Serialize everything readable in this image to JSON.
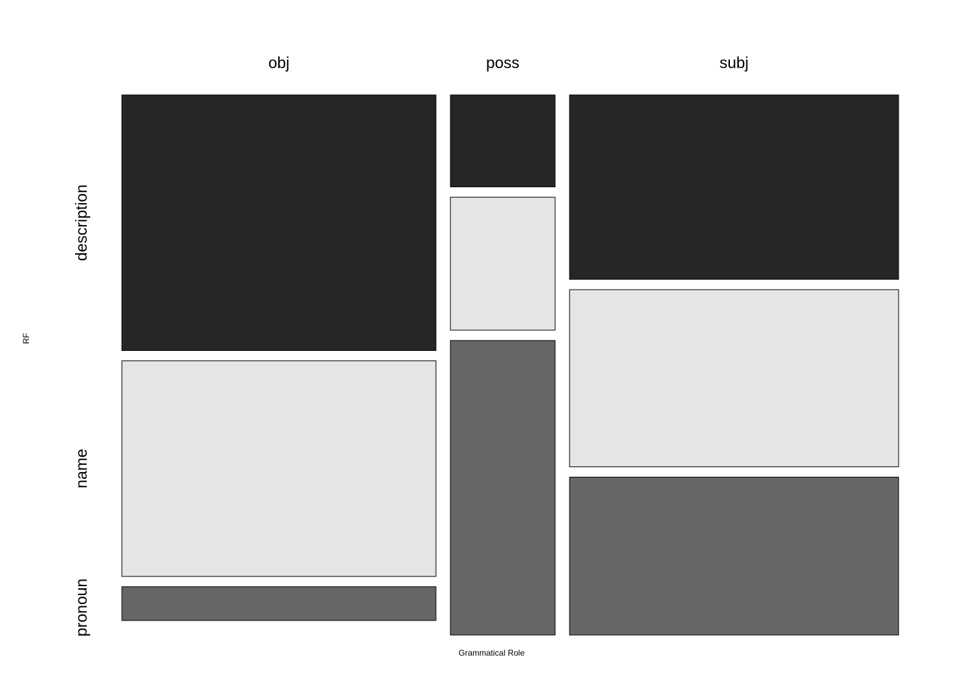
{
  "chart_data": {
    "type": "mosaic",
    "xlabel": "Grammatical Role",
    "ylabel": "RF",
    "columns": [
      "obj",
      "poss",
      "subj"
    ],
    "rows": [
      "description",
      "name",
      "pronoun"
    ],
    "column_proportions": [
      0.42,
      0.14,
      0.44
    ],
    "row_proportions": {
      "obj": [
        0.492,
        0.415,
        0.065
      ],
      "poss": [
        0.177,
        0.256,
        0.567
      ],
      "subj": [
        0.355,
        0.341,
        0.304
      ]
    },
    "colors": {
      "description": "#262626",
      "name": "#e5e5e5",
      "pronoun": "#666666"
    }
  }
}
